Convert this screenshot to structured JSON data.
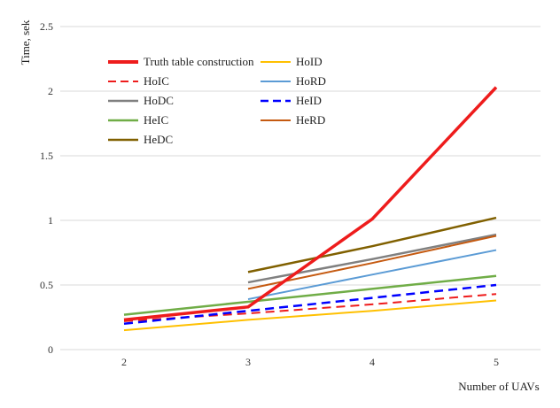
{
  "chart_data": {
    "type": "line",
    "xlabel": "Number of UAVs",
    "ylabel": "Time, sek",
    "categories": [
      "2",
      "3",
      "4",
      "5"
    ],
    "ylim": [
      0,
      2.5
    ],
    "yticks": [
      "0",
      "0.5",
      "1",
      "1.5",
      "2",
      "2.5"
    ],
    "grid": "horizontal",
    "legend_position": "top-left",
    "series": [
      {
        "name": "Truth table construction",
        "color": "#ee1c1c",
        "dash": "solid",
        "width": 3.5,
        "values": [
          0.23,
          0.33,
          1.01,
          2.03
        ]
      },
      {
        "name": "HoID",
        "color": "#ffc000",
        "dash": "solid",
        "width": 2,
        "values": [
          0.15,
          0.23,
          0.3,
          0.38
        ]
      },
      {
        "name": "HoIC",
        "color": "#ee1c1c",
        "dash": "dashed",
        "width": 2,
        "values": [
          0.22,
          0.28,
          0.35,
          0.43
        ]
      },
      {
        "name": "HoRD",
        "color": "#5b9bd5",
        "dash": "solid",
        "width": 2,
        "values": [
          null,
          0.39,
          0.58,
          0.77
        ]
      },
      {
        "name": "HoDC",
        "color": "#808080",
        "dash": "solid",
        "width": 2.5,
        "values": [
          null,
          0.52,
          0.7,
          0.89
        ]
      },
      {
        "name": "HeID",
        "color": "#0000ff",
        "dash": "dashed",
        "width": 2.5,
        "values": [
          0.2,
          0.3,
          0.4,
          0.5
        ]
      },
      {
        "name": "HeIC",
        "color": "#70ad47",
        "dash": "solid",
        "width": 2.5,
        "values": [
          0.27,
          0.37,
          0.47,
          0.57
        ]
      },
      {
        "name": "HeRD",
        "color": "#c55a11",
        "dash": "solid",
        "width": 2,
        "values": [
          null,
          0.47,
          0.67,
          0.88
        ]
      },
      {
        "name": "HeDC",
        "color": "#806000",
        "dash": "solid",
        "width": 2.5,
        "values": [
          null,
          0.6,
          0.8,
          1.02
        ]
      }
    ]
  }
}
